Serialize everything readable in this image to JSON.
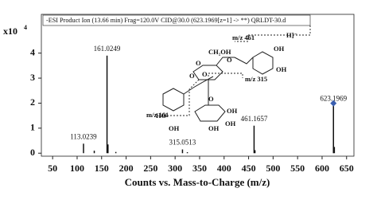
{
  "chart_data": {
    "type": "bar",
    "title": "-ESI Product Ion (13.66 min) Frag=120.0V CID@30.0 (623.1969[z=1] -> **) QRLDT-30.d",
    "x_label": "Counts vs. Mass-to-Charge (m/z)",
    "y_multiplier": "x10",
    "y_exponent": "4",
    "x": [
      113.0239,
      161.0249,
      315.0513,
      461.1657,
      623.1969
    ],
    "values": [
      0.38,
      3.9,
      0.15,
      1.1,
      1.9
    ],
    "minor_peaks": {
      "x": [
        135,
        163,
        179,
        325,
        463,
        625
      ],
      "values": [
        0.1,
        0.35,
        0.05,
        0.04,
        0.12,
        0.25
      ]
    },
    "color": "#111111",
    "marker_color": "#3a5fb0",
    "xlim": [
      27,
      665
    ],
    "ylim": [
      -0.12,
      5.55
    ],
    "xticks": [
      50,
      100,
      150,
      200,
      250,
      300,
      350,
      400,
      450,
      500,
      550,
      600,
      650
    ],
    "yticks": [
      0,
      1,
      2,
      3,
      4
    ],
    "annotations": [
      "m/z 461",
      "m/z 315",
      "m/z 161",
      "CH₂OH",
      "OH",
      "OH",
      "O",
      "O",
      "O",
      "HO",
      "OH",
      "O",
      "OH",
      "OH",
      "OH",
      "O",
      "H]⁻"
    ]
  }
}
